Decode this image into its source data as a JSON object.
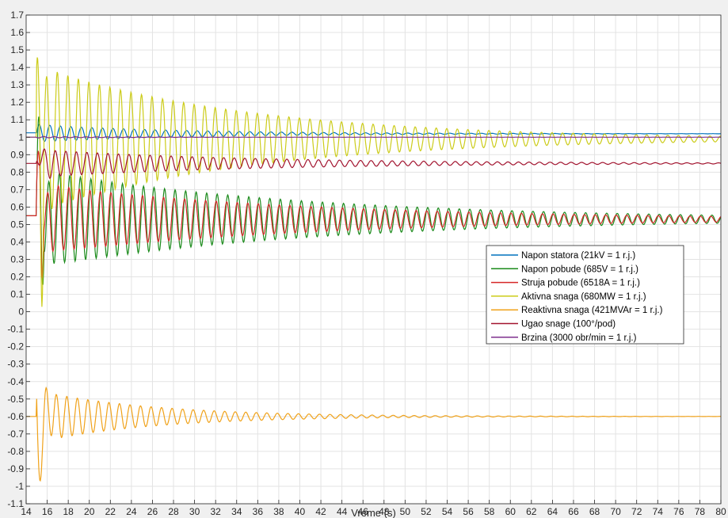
{
  "chart_data": {
    "type": "line",
    "title": "",
    "xlabel": "Vreme (s)",
    "ylabel": "",
    "xlim": [
      14,
      80
    ],
    "ylim": [
      -1.1,
      1.7
    ],
    "xticks": [
      14,
      16,
      18,
      20,
      22,
      24,
      26,
      28,
      30,
      32,
      34,
      36,
      38,
      40,
      42,
      44,
      46,
      48,
      50,
      52,
      54,
      56,
      58,
      60,
      62,
      64,
      66,
      68,
      70,
      72,
      74,
      76,
      78,
      80
    ],
    "yticks": [
      -1.1,
      -1,
      -0.9,
      -0.8,
      -0.7,
      -0.6,
      -0.5,
      -0.4,
      -0.3,
      -0.2,
      -0.1,
      0,
      0.1,
      0.2,
      0.3,
      0.4,
      0.5,
      0.6,
      0.7,
      0.8,
      0.9,
      1,
      1.1,
      1.2,
      1.3,
      1.4,
      1.5,
      1.6,
      1.7
    ],
    "grid": true,
    "legend_location": "right",
    "series": [
      {
        "name": "Napon statora (21kV = 1 r.j.)",
        "color": "#0072bd",
        "initial": 1.025,
        "fault_time": 15.0,
        "final": 1.02,
        "osc_amplitude": 0.05,
        "period_s": 1.0,
        "decay_time_s": 14
      },
      {
        "name": "Napon pobude (685V = 1 r.j.)",
        "color": "#1a8a1a",
        "initial": 0.55,
        "fault_time": 15.0,
        "final": 0.53,
        "peak": 1.26,
        "min": 0.08,
        "osc_amplitude": 0.28,
        "period_s": 1.0,
        "decay_time_s": 26
      },
      {
        "name": "Struja pobude (6518A = 1 r.j.)",
        "color": "#d62728",
        "initial": 0.55,
        "fault_time": 15.0,
        "final": 0.53,
        "peak": 1.05,
        "min": 0.15,
        "osc_amplitude": 0.2,
        "period_s": 1.0,
        "decay_time_s": 26
      },
      {
        "name": "Aktivna snaga (680MW = 1 r.j.)",
        "color": "#cccc1a",
        "initial": 1.0,
        "fault_time": 15.0,
        "final": 0.99,
        "peak": 1.62,
        "min": 0.05,
        "osc_amplitude": 0.42,
        "period_s": 1.0,
        "decay_time_s": 20
      },
      {
        "name": "Reaktivna snaga (421MVAr = 1 r.j.)",
        "color": "#f0a21a",
        "initial": -0.6,
        "fault_time": 15.0,
        "final": -0.6,
        "peak_low": -1.06,
        "osc_amplitude": 0.15,
        "period_s": 1.0,
        "decay_time_s": 11
      },
      {
        "name": "Ugao snage (100°/pod)",
        "color": "#a2142f",
        "initial": 0.85,
        "fault_time": 15.0,
        "final": 0.85,
        "peak": 1.0,
        "osc_amplitude": 0.08,
        "period_s": 1.0,
        "decay_time_s": 20
      },
      {
        "name": "Brzina (3000 obr/min = 1 r.j.)",
        "color": "#7e2f8e",
        "initial": 1.0,
        "fault_time": 15.0,
        "final": 1.0,
        "osc_amplitude": 0.004,
        "period_s": 1.0,
        "decay_time_s": 10
      }
    ]
  }
}
